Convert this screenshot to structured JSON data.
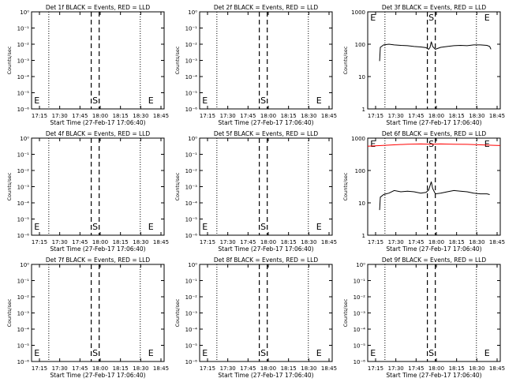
{
  "chart_data": [
    {
      "type": "line",
      "title": "Det 1f BLACK = Events, RED = LLD",
      "ylabel": "Counts/sec",
      "xlabel": "Start Time (27-Feb-17 17:06:40)",
      "yscale": "log",
      "ytick_labels": [
        "10⁰",
        "10⁻¹",
        "10⁻²",
        "10⁻³",
        "10⁻⁴",
        "10⁻⁵",
        "10⁻⁶"
      ],
      "ylim": [
        1e-06,
        1
      ],
      "xtick_labels": [
        "17:15",
        "17:30",
        "17:45",
        "18:00",
        "18:15",
        "18:30",
        "18:45"
      ],
      "xlim_min": [
        0,
        100
      ],
      "markers": [
        {
          "label": "E",
          "x_min": 4
        },
        {
          "label": "S",
          "x_min": 48
        },
        {
          "label": "E",
          "x_min": 90
        }
      ],
      "series": []
    },
    {
      "type": "line",
      "title": "Det 2f BLACK = Events, RED = LLD",
      "ylabel": "Counts/sec",
      "xlabel": "Start Time (27-Feb-17 17:06:40)",
      "yscale": "log",
      "ytick_labels": [
        "10⁰",
        "10⁻¹",
        "10⁻²",
        "10⁻³",
        "10⁻⁴",
        "10⁻⁵",
        "10⁻⁶"
      ],
      "ylim": [
        1e-06,
        1
      ],
      "xtick_labels": [
        "17:15",
        "17:30",
        "17:45",
        "18:00",
        "18:15",
        "18:30",
        "18:45"
      ],
      "xlim_min": [
        0,
        100
      ],
      "markers": [
        {
          "label": "E",
          "x_min": 4
        },
        {
          "label": "S",
          "x_min": 48
        },
        {
          "label": "E",
          "x_min": 90
        }
      ],
      "series": []
    },
    {
      "type": "line",
      "title": "Det 3f BLACK = Events, RED = LLD",
      "ylabel": "Counts/sec",
      "xlabel": "Start Time (27-Feb-17 17:06:40)",
      "yscale": "log",
      "ytick_labels": [
        "1",
        "10",
        "100",
        "1000"
      ],
      "ylim": [
        1,
        1000
      ],
      "xtick_labels": [
        "17:15",
        "17:30",
        "17:45",
        "18:00",
        "18:15",
        "18:30",
        "18:45"
      ],
      "xlim_min": [
        0,
        100
      ],
      "markers": [
        {
          "label": "E",
          "x_min": 4
        },
        {
          "label": "S",
          "x_min": 48
        },
        {
          "label": "E",
          "x_min": 90
        }
      ],
      "series": [
        {
          "color": "#000000",
          "points": [
            [
              9,
              30
            ],
            [
              9.5,
              80
            ],
            [
              12,
              95
            ],
            [
              16,
              100
            ],
            [
              20,
              95
            ],
            [
              25,
              92
            ],
            [
              30,
              90
            ],
            [
              35,
              85
            ],
            [
              40,
              82
            ],
            [
              44,
              78
            ],
            [
              46,
              70
            ],
            [
              47,
              80
            ],
            [
              48,
              120
            ],
            [
              49,
              85
            ],
            [
              51,
              70
            ],
            [
              55,
              80
            ],
            [
              60,
              85
            ],
            [
              65,
              90
            ],
            [
              70,
              92
            ],
            [
              75,
              90
            ],
            [
              80,
              95
            ],
            [
              85,
              95
            ],
            [
              90,
              92
            ],
            [
              92,
              85
            ],
            [
              93,
              70
            ]
          ]
        }
      ]
    },
    {
      "type": "line",
      "title": "Det 4f BLACK = Events, RED = LLD",
      "ylabel": "Counts/sec",
      "xlabel": "Start Time (27-Feb-17 17:06:40)",
      "yscale": "log",
      "ytick_labels": [
        "10⁰",
        "10⁻¹",
        "10⁻²",
        "10⁻³",
        "10⁻⁴",
        "10⁻⁵",
        "10⁻⁶"
      ],
      "ylim": [
        1e-06,
        1
      ],
      "xtick_labels": [
        "17:15",
        "17:30",
        "17:45",
        "18:00",
        "18:15",
        "18:30",
        "18:45"
      ],
      "xlim_min": [
        0,
        100
      ],
      "markers": [
        {
          "label": "E",
          "x_min": 4
        },
        {
          "label": "S",
          "x_min": 48
        },
        {
          "label": "E",
          "x_min": 90
        }
      ],
      "series": []
    },
    {
      "type": "line",
      "title": "Det 5f BLACK = Events, RED = LLD",
      "ylabel": "Counts/sec",
      "xlabel": "Start Time (27-Feb-17 17:06:40)",
      "yscale": "log",
      "ytick_labels": [
        "10⁰",
        "10⁻¹",
        "10⁻²",
        "10⁻³",
        "10⁻⁴",
        "10⁻⁵",
        "10⁻⁶"
      ],
      "ylim": [
        1e-06,
        1
      ],
      "xtick_labels": [
        "17:15",
        "17:30",
        "17:45",
        "18:00",
        "18:15",
        "18:30",
        "18:45"
      ],
      "xlim_min": [
        0,
        100
      ],
      "markers": [
        {
          "label": "E",
          "x_min": 4
        },
        {
          "label": "S",
          "x_min": 48
        },
        {
          "label": "E",
          "x_min": 90
        }
      ],
      "series": []
    },
    {
      "type": "line",
      "title": "Det 6f BLACK = Events, RED = LLD",
      "ylabel": "Counts/sec",
      "xlabel": "Start Time (27-Feb-17 17:06:40)",
      "yscale": "log",
      "ytick_labels": [
        "1",
        "10",
        "100",
        "1000"
      ],
      "ylim": [
        1,
        1000
      ],
      "xtick_labels": [
        "17:15",
        "17:30",
        "17:45",
        "18:00",
        "18:15",
        "18:30",
        "18:45"
      ],
      "xlim_min": [
        0,
        100
      ],
      "markers": [
        {
          "label": "E",
          "x_min": 4
        },
        {
          "label": "S",
          "x_min": 48
        },
        {
          "label": "E",
          "x_min": 90
        }
      ],
      "series": [
        {
          "color": "#ff0000",
          "points": [
            [
              0,
              560
            ],
            [
              10,
              590
            ],
            [
              20,
              620
            ],
            [
              30,
              650
            ],
            [
              40,
              660
            ],
            [
              48,
              650
            ],
            [
              55,
              660
            ],
            [
              65,
              650
            ],
            [
              75,
              640
            ],
            [
              85,
              620
            ],
            [
              95,
              600
            ],
            [
              100,
              590
            ]
          ]
        },
        {
          "color": "#000000",
          "points": [
            [
              9,
              6
            ],
            [
              9.5,
              15
            ],
            [
              12,
              18
            ],
            [
              16,
              20
            ],
            [
              20,
              24
            ],
            [
              25,
              22
            ],
            [
              30,
              23
            ],
            [
              35,
              22
            ],
            [
              40,
              20
            ],
            [
              44,
              21
            ],
            [
              46,
              25
            ],
            [
              48,
              45
            ],
            [
              49,
              28
            ],
            [
              51,
              19
            ],
            [
              55,
              20
            ],
            [
              60,
              22
            ],
            [
              65,
              24
            ],
            [
              70,
              23
            ],
            [
              75,
              22
            ],
            [
              80,
              20
            ],
            [
              85,
              19
            ],
            [
              90,
              19
            ],
            [
              92,
              18
            ]
          ]
        }
      ]
    },
    {
      "type": "line",
      "title": "Det 7f BLACK = Events, RED = LLD",
      "ylabel": "Counts/sec",
      "xlabel": "Start Time (27-Feb-17 17:06:40)",
      "yscale": "log",
      "ytick_labels": [
        "10⁰",
        "10⁻¹",
        "10⁻²",
        "10⁻³",
        "10⁻⁴",
        "10⁻⁵",
        "10⁻⁶"
      ],
      "ylim": [
        1e-06,
        1
      ],
      "xtick_labels": [
        "17:15",
        "17:30",
        "17:45",
        "18:00",
        "18:15",
        "18:30",
        "18:45"
      ],
      "xlim_min": [
        0,
        100
      ],
      "markers": [
        {
          "label": "E",
          "x_min": 4
        },
        {
          "label": "S",
          "x_min": 48
        },
        {
          "label": "E",
          "x_min": 90
        }
      ],
      "series": []
    },
    {
      "type": "line",
      "title": "Det 8f BLACK = Events, RED = LLD",
      "ylabel": "Counts/sec",
      "xlabel": "Start Time (27-Feb-17 17:06:40)",
      "yscale": "log",
      "ytick_labels": [
        "10⁰",
        "10⁻¹",
        "10⁻²",
        "10⁻³",
        "10⁻⁴",
        "10⁻⁵",
        "10⁻⁶"
      ],
      "ylim": [
        1e-06,
        1
      ],
      "xtick_labels": [
        "17:15",
        "17:30",
        "17:45",
        "18:00",
        "18:15",
        "18:30",
        "18:45"
      ],
      "xlim_min": [
        0,
        100
      ],
      "markers": [
        {
          "label": "E",
          "x_min": 4
        },
        {
          "label": "S",
          "x_min": 48
        },
        {
          "label": "E",
          "x_min": 90
        }
      ],
      "series": []
    },
    {
      "type": "line",
      "title": "Det 9f BLACK = Events, RED = LLD",
      "ylabel": "Counts/sec",
      "xlabel": "Start Time (27-Feb-17 17:06:40)",
      "yscale": "log",
      "ytick_labels": [
        "10⁰",
        "10⁻¹",
        "10⁻²",
        "10⁻³",
        "10⁻⁴",
        "10⁻⁵",
        "10⁻⁶"
      ],
      "ylim": [
        1e-06,
        1
      ],
      "xtick_labels": [
        "17:15",
        "17:30",
        "17:45",
        "18:00",
        "18:15",
        "18:30",
        "18:45"
      ],
      "xlim_min": [
        0,
        100
      ],
      "markers": [
        {
          "label": "E",
          "x_min": 4
        },
        {
          "label": "S",
          "x_min": 48
        },
        {
          "label": "E",
          "x_min": 90
        }
      ],
      "series": []
    }
  ]
}
